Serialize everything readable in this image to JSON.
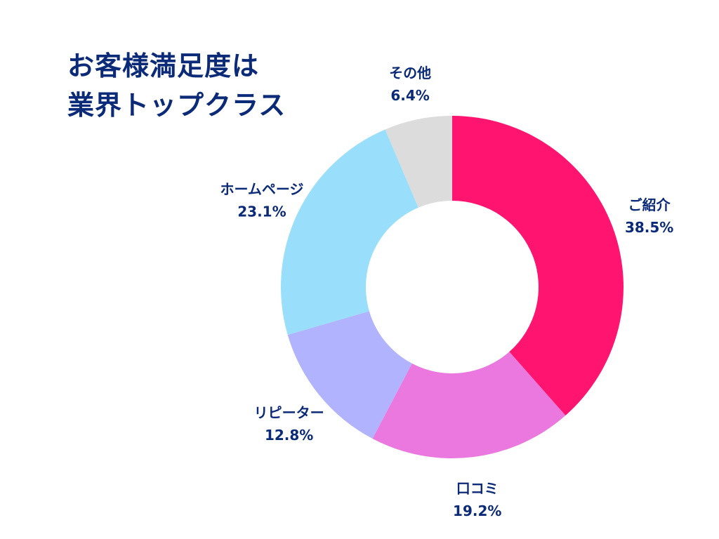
{
  "title": {
    "line1": "お客様満足度は",
    "line2": "業界トップクラス"
  },
  "chart_data": {
    "type": "pie",
    "donut": true,
    "categories": [
      "ご紹介",
      "口コミ",
      "リピーター",
      "ホームページ",
      "その他"
    ],
    "values": [
      38.5,
      19.2,
      12.8,
      23.1,
      6.4
    ],
    "value_labels": [
      "38.5%",
      "19.2%",
      "12.8%",
      "23.1%",
      "6.4%"
    ],
    "colors": [
      "#ff1470",
      "#ea78de",
      "#b1b3ff",
      "#99dffc",
      "#dcdcdc"
    ],
    "start_angle_deg": 0,
    "direction": "clockwise"
  }
}
